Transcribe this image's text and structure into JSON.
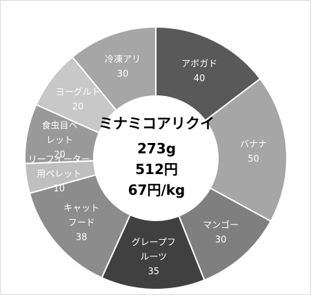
{
  "chart_data": {
    "type": "pie",
    "donut": true,
    "title": "",
    "categories": [
      "アボガド",
      "バナナ",
      "マンゴー",
      "グレープフルーツ",
      "キャットフード",
      "リーフイーター用ペレット",
      "食虫目ペレット",
      "ヨーグルト",
      "冷凍アリ"
    ],
    "label_lines": [
      [
        "アボガド"
      ],
      [
        "バナナ"
      ],
      [
        "マンゴー"
      ],
      [
        "グレープフ",
        "ルーツ"
      ],
      [
        "キャット",
        "フード"
      ],
      [
        "リーフイーター",
        "用ペレット"
      ],
      [
        "食虫目ペ",
        "レット"
      ],
      [
        "ヨーグルト"
      ],
      [
        "冷凍アリ"
      ]
    ],
    "values": [
      40,
      50,
      30,
      35,
      38,
      10,
      20,
      20,
      30
    ],
    "colors": [
      "#595959",
      "#a6a6a6",
      "#7f7f7f",
      "#404040",
      "#8c8c8c",
      "#bfbfbf",
      "#999999",
      "#c8c8c8",
      "#a6a6a6"
    ],
    "legend": "none"
  },
  "center": {
    "name": "ミナミコアリクイ",
    "weight": "273g",
    "price": "512円",
    "unit_price": "67円/kg"
  }
}
